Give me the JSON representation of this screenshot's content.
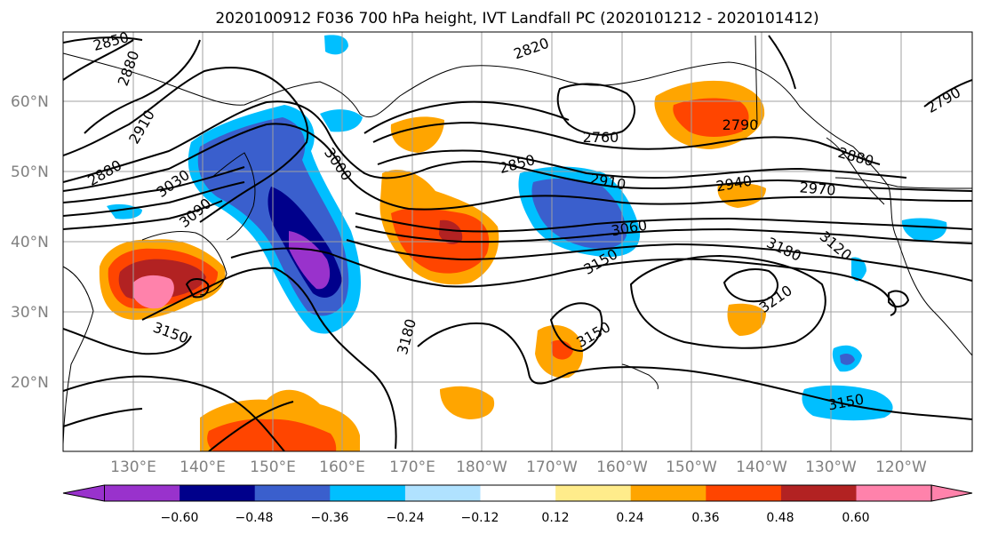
{
  "title": "2020100912 F036 700 hPa height, IVT Landfall PC (2020101212 - 2020101412)",
  "lat_labels": [
    "60°N",
    "50°N",
    "40°N",
    "30°N",
    "20°N"
  ],
  "lon_labels": [
    "130°E",
    "140°E",
    "150°E",
    "160°E",
    "170°E",
    "180°W",
    "170°W",
    "160°W",
    "150°W",
    "140°W",
    "130°W",
    "120°W"
  ],
  "colorbar": {
    "colors": [
      "#9932cc",
      "#00008b",
      "#3a5fcd",
      "#00bfff",
      "#b0e2ff",
      "#ffffff",
      "#ffec8b",
      "#ffa500",
      "#ff4500",
      "#b22222",
      "#ff82ab"
    ],
    "under_color": "#9932cc",
    "over_color": "#ff82ab",
    "tick_labels": [
      "−0.60",
      "−0.48",
      "−0.36",
      "−0.24",
      "−0.12",
      "0.12",
      "0.24",
      "0.36",
      "0.48",
      "0.60"
    ]
  },
  "contour_labels": [
    "2850",
    "2880",
    "2820",
    "2910",
    "2880",
    "3030",
    "3090",
    "3000",
    "2760",
    "2850",
    "2910",
    "2790",
    "2880",
    "2940",
    "2970",
    "2790",
    "3060",
    "3180",
    "3120",
    "3150",
    "3210",
    "3150",
    "3150",
    "3180",
    "3150"
  ]
}
